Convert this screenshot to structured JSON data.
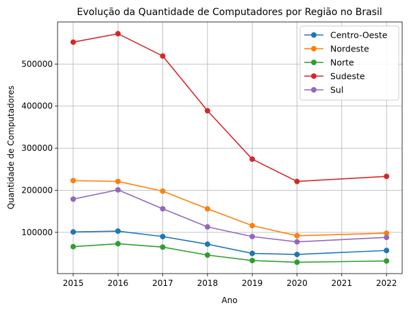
{
  "chart_data": {
    "type": "line",
    "title": "Evolução da Quantidade de Computadores por Região no Brasil",
    "xlabel": "Ano",
    "ylabel": "Quantidade de Computadores",
    "x_ticks": [
      "2015",
      "2016",
      "2017",
      "2018",
      "2019",
      "2020",
      "2021",
      "2022"
    ],
    "y_ticks": [
      "100000",
      "200000",
      "300000",
      "400000",
      "500000"
    ],
    "xlim": [
      2014.65,
      2022.35
    ],
    "ylim": [
      2000,
      600000
    ],
    "grid": true,
    "legend_position": "top-right",
    "x": [
      2015,
      2016,
      2017,
      2018,
      2019,
      2020,
      2022
    ],
    "series": [
      {
        "name": "Centro-Oeste",
        "color": "#1f77b4",
        "values": [
          101000,
          103000,
          90000,
          72000,
          50000,
          47500,
          57000
        ]
      },
      {
        "name": "Nordeste",
        "color": "#ff7f0e",
        "values": [
          223000,
          221000,
          198000,
          156000,
          116000,
          92000,
          98000
        ]
      },
      {
        "name": "Norte",
        "color": "#2ca02c",
        "values": [
          66000,
          73000,
          65000,
          46000,
          33000,
          29000,
          32000
        ]
      },
      {
        "name": "Sudeste",
        "color": "#d62728",
        "values": [
          552000,
          572000,
          519000,
          389000,
          274000,
          221000,
          233000
        ]
      },
      {
        "name": "Sul",
        "color": "#9467bd",
        "values": [
          179000,
          201000,
          156000,
          113000,
          90000,
          77500,
          88000
        ]
      }
    ]
  }
}
